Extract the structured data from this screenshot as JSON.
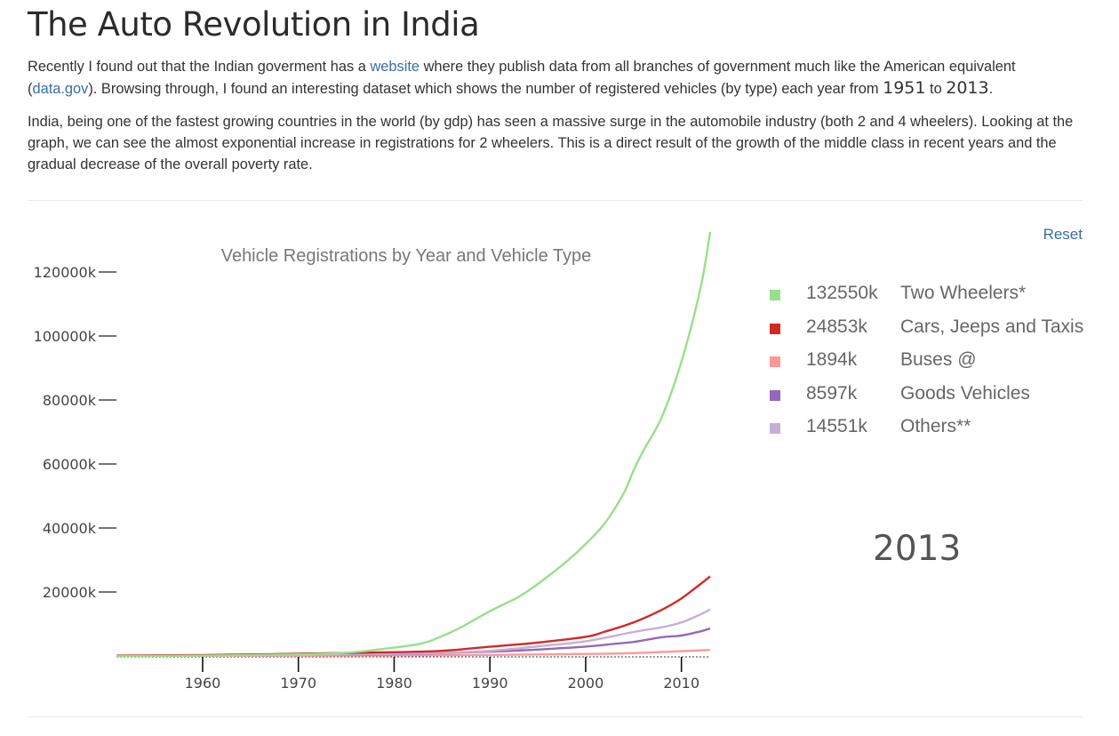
{
  "page": {
    "title": "The Auto Revolution in India",
    "p1_a": "Recently I found out that the Indian goverment has a ",
    "p1_link1": "website",
    "p1_b": " where they publish data from all branches of government much like the American equivalent (",
    "p1_link2": "data.gov",
    "p1_c": "). Browsing through, I found an interesting dataset which shows the number of registered vehicles (by type) each year from ",
    "year_from": "1951",
    "p1_d": " to ",
    "year_to": "2013",
    "p1_e": ".",
    "p2": "India, being one of the fastest growing countries in the world (by gdp) has seen a massive surge in the automobile industry (both 2 and 4 wheelers). Looking at the graph, we can see the almost exponential increase in registrations for 2 wheelers. This is a direct result of the growth of the middle class in recent years and the gradual decrease of the overall poverty rate.",
    "reset_label": "Reset",
    "current_year": "2013"
  },
  "legend": [
    {
      "value": "132550k",
      "name": "Two Wheelers*",
      "color": "#98df8a"
    },
    {
      "value": "24853k",
      "name": "Cars, Jeeps and Taxis",
      "color": "#d62728"
    },
    {
      "value": "1894k",
      "name": "Buses @",
      "color": "#ff9896"
    },
    {
      "value": "8597k",
      "name": "Goods Vehicles",
      "color": "#9467bd"
    },
    {
      "value": "14551k",
      "name": "Others**",
      "color": "#c5b0d5"
    }
  ],
  "chart_data": {
    "type": "line",
    "title": "Vehicle Registrations by Year and Vehicle Type",
    "xlabel": "",
    "ylabel": "",
    "xlim": [
      1951,
      2013
    ],
    "ylim": [
      0,
      130000
    ],
    "x_ticks": [
      "1960",
      "1970",
      "1980",
      "1990",
      "2000",
      "2010"
    ],
    "y_ticks": [
      "20000k",
      "40000k",
      "60000k",
      "80000k",
      "100000k",
      "120000k"
    ],
    "grid": false,
    "legend_position": "right",
    "series": [
      {
        "name": "Two Wheelers*",
        "color": "#98df8a",
        "x": [
          1951,
          1960,
          1970,
          1975,
          1980,
          1983,
          1985,
          1987,
          1990,
          1993,
          1995,
          1998,
          2000,
          2002,
          2004,
          2005,
          2006,
          2008,
          2010,
          2012,
          2013
        ],
        "y": [
          30,
          100,
          500,
          1000,
          2600,
          4000,
          6200,
          9000,
          14000,
          18500,
          22500,
          29500,
          35000,
          41500,
          51000,
          58000,
          64000,
          75000,
          92000,
          115000,
          132550
        ]
      },
      {
        "name": "Cars, Jeeps and Taxis",
        "color": "#d62728",
        "x": [
          1951,
          1960,
          1970,
          1980,
          1985,
          1990,
          1995,
          2000,
          2002,
          2005,
          2008,
          2010,
          2012,
          2013
        ],
        "y": [
          150,
          300,
          700,
          1200,
          1600,
          2900,
          4200,
          6000,
          7600,
          10500,
          14500,
          18000,
          22500,
          24853
        ]
      },
      {
        "name": "Buses @",
        "color": "#ff9896",
        "x": [
          1951,
          1970,
          1980,
          1990,
          2000,
          2005,
          2010,
          2013
        ],
        "y": [
          30,
          90,
          160,
          330,
          630,
          900,
          1500,
          1894
        ]
      },
      {
        "name": "Goods Vehicles",
        "color": "#9467bd",
        "x": [
          1951,
          1960,
          1970,
          1980,
          1990,
          1995,
          2000,
          2003,
          2005,
          2008,
          2010,
          2012,
          2013
        ],
        "y": [
          80,
          170,
          350,
          550,
          1350,
          2000,
          2950,
          3800,
          4400,
          5900,
          6400,
          7700,
          8597
        ]
      },
      {
        "name": "Others**",
        "color": "#c5b0d5",
        "x": [
          1951,
          1960,
          1970,
          1980,
          1985,
          1990,
          1995,
          2000,
          2005,
          2008,
          2010,
          2012,
          2013
        ],
        "y": [
          50,
          120,
          300,
          700,
          1000,
          1600,
          3000,
          4600,
          7500,
          9000,
          10500,
          13000,
          14551
        ]
      }
    ]
  }
}
